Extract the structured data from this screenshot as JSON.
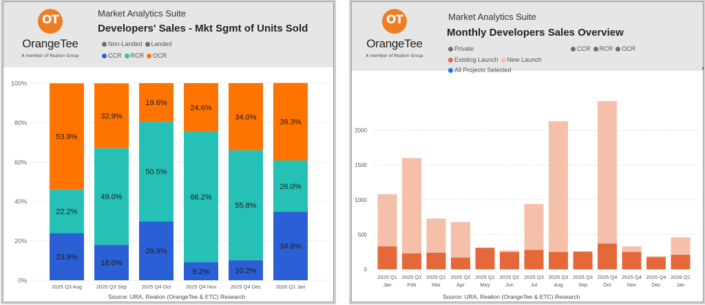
{
  "panels": {
    "left": {
      "logo": {
        "mark": "OT",
        "brand": "OrangeTee",
        "tagline": "A member of Realion Group"
      },
      "suite": "Market Analytics Suite",
      "title": "Developers' Sales - Mkt Sgmt of Units Sold",
      "legend_row1": [
        {
          "label": "Non-Landed",
          "color": "#6e6e6e"
        },
        {
          "label": "Landed",
          "color": "#6e6e6e"
        }
      ],
      "legend_row2": [
        {
          "label": "CCR",
          "color": "#2b5fd6"
        },
        {
          "label": "RCR",
          "color": "#26c1b6"
        },
        {
          "label": "OCR",
          "color": "#ff7300"
        }
      ],
      "source": "Source: URA, Realion (OrangeTee & ETC) Research"
    },
    "right": {
      "logo": {
        "mark": "OT",
        "brand": "OrangeTee",
        "tagline": "A member of Realion Group"
      },
      "suite": "Market Analytics Suite",
      "title": "Monthly Developers Sales Overview",
      "legend_row1": [
        {
          "label": "Private",
          "color": "#6e6e6e"
        }
      ],
      "legend_row2": [
        {
          "label": "Existing Launch",
          "color": "#e4683a"
        },
        {
          "label": "New Launch",
          "color": "#f4c0aa"
        }
      ],
      "legend_row3": [
        {
          "label": "All Projects Selected",
          "color": "#1a73e8"
        }
      ],
      "legend_segments": [
        {
          "label": "CCR",
          "color": "#6e6e6e"
        },
        {
          "label": "RCR",
          "color": "#6e6e6e"
        },
        {
          "label": "OCR",
          "color": "#6e6e6e"
        }
      ],
      "source": "Source: URA, Realion (OrangeTee & ETC) Research"
    }
  },
  "chart_data": [
    {
      "type": "bar",
      "stacked": "percent",
      "title": "Developers' Sales - Mkt Sgmt of Units Sold",
      "categories": [
        "2025 Q3 Aug",
        "2025 Q3 Sep",
        "2025 Q4 Oct",
        "2025 Q4 Nov",
        "2025 Q4 Dec",
        "2026 Q1 Jan"
      ],
      "series": [
        {
          "name": "CCR",
          "color": "#2b5fd6",
          "values": [
            23.9,
            18.0,
            29.9,
            9.2,
            10.2,
            34.8
          ]
        },
        {
          "name": "RCR",
          "color": "#26c1b6",
          "values": [
            22.2,
            49.0,
            50.5,
            66.2,
            55.8,
            26.0
          ]
        },
        {
          "name": "OCR",
          "color": "#ff7300",
          "values": [
            53.8,
            32.9,
            19.6,
            24.6,
            34.0,
            39.3
          ]
        }
      ],
      "data_labels": [
        [
          "23.9%",
          "18.0%",
          "29.9%",
          "9.2%",
          "10.2%",
          "34.8%"
        ],
        [
          "22.2%",
          "49.0%",
          "50.5%",
          "66.2%",
          "55.8%",
          "26.0%"
        ],
        [
          "53.8%",
          "32.9%",
          "19.6%",
          "24.6%",
          "34.0%",
          "39.3%"
        ]
      ],
      "yticks": [
        "0%",
        "20%",
        "40%",
        "60%",
        "80%",
        "100%"
      ],
      "ylim": [
        0,
        100
      ],
      "xlabel": "",
      "ylabel": "",
      "grid": true,
      "legend": "top"
    },
    {
      "type": "bar",
      "stacked": "stacked",
      "title": "Monthly Developers Sales Overview",
      "categories": [
        [
          "2025 Q1",
          "Jan"
        ],
        [
          "2025 Q1",
          "Feb"
        ],
        [
          "2025 Q1",
          "Mar"
        ],
        [
          "2025 Q2",
          "Apr"
        ],
        [
          "2025 Q2",
          "May"
        ],
        [
          "2025 Q2",
          "Jun"
        ],
        [
          "2025 Q3",
          "Jul"
        ],
        [
          "2025 Q3",
          "Aug"
        ],
        [
          "2025 Q3",
          "Sep"
        ],
        [
          "2025 Q4",
          "Oct"
        ],
        [
          "2025 Q4",
          "Nov"
        ],
        [
          "2025 Q4",
          "Dec"
        ],
        [
          "2026 Q1",
          "Jan"
        ]
      ],
      "series": [
        {
          "name": "Existing Launch",
          "color": "#e4683a",
          "values": [
            330,
            230,
            240,
            170,
            310,
            250,
            280,
            250,
            255,
            370,
            250,
            175,
            210
          ]
        },
        {
          "name": "New Launch",
          "color": "#f4c0aa",
          "values": [
            750,
            1370,
            490,
            510,
            0,
            20,
            660,
            1880,
            0,
            2050,
            80,
            15,
            250
          ]
        }
      ],
      "yticks": [
        "0",
        "500",
        "1000",
        "1500",
        "2000"
      ],
      "ylim": [
        0,
        2700
      ],
      "xlabel": "",
      "ylabel": "",
      "grid": true,
      "legend": "top"
    }
  ]
}
